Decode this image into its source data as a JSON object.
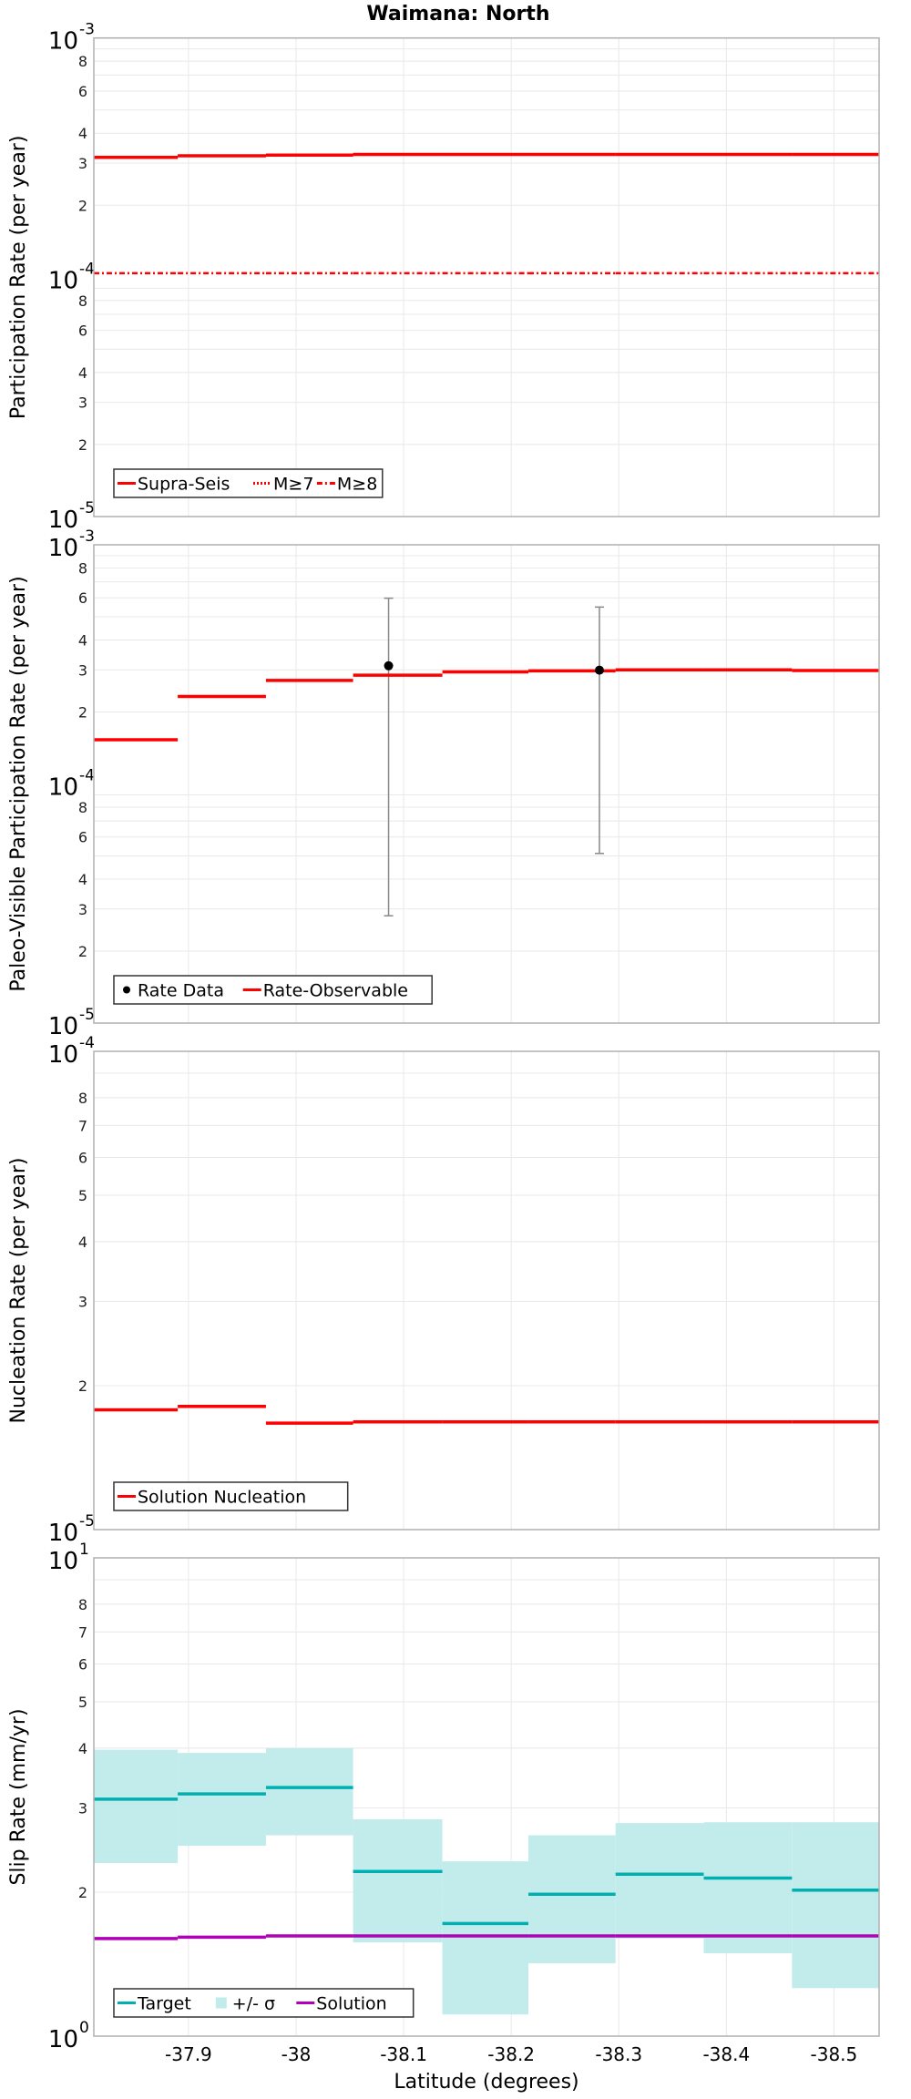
{
  "title": "Waimana: North",
  "x_axis": {
    "label": "Latitude (degrees)",
    "range": [
      -37.812,
      -38.542
    ],
    "ticks": [
      -37.9,
      -38.0,
      -38.1,
      -38.2,
      -38.3,
      -38.4,
      -38.5
    ],
    "tick_labels": [
      "-37.9",
      "-38",
      "-38.1",
      "-38.2",
      "-38.3",
      "-38.4",
      "-38.5"
    ]
  },
  "colors": {
    "red": "#ff0000",
    "target": "#00b0b0",
    "band": "#c2ecec",
    "solution": "#b000b8",
    "errorbar": "#888888",
    "grid": "#e8e8e8",
    "frame": "#b0b0b0"
  },
  "chart_data": [
    {
      "type": "line",
      "subtype": "step",
      "title": "Waimana: North",
      "ylabel": "Participation Rate (per year)",
      "xlabel": "",
      "yscale": "log",
      "ylim": [
        1e-05,
        0.001
      ],
      "y_decade_labels": [
        {
          "base": "10",
          "exp": "-3",
          "value": 0.001
        },
        {
          "base": "10",
          "exp": "-4",
          "value": 0.0001
        },
        {
          "base": "10",
          "exp": "-5",
          "value": 1e-05
        }
      ],
      "y_minor_labels": [
        "2",
        "3",
        "4",
        "6",
        "8"
      ],
      "segment_edges": [
        -37.812,
        -37.89,
        -37.972,
        -38.053,
        -38.136,
        -38.216,
        -38.297,
        -38.379,
        -38.461,
        -38.542
      ],
      "series": [
        {
          "name": "Supra-Seis",
          "style": "solid",
          "color": "#ff0000",
          "values": [
            0.000317,
            0.000322,
            0.000324,
            0.000326,
            0.000326,
            0.000326,
            0.000326,
            0.000326,
            0.000326
          ]
        },
        {
          "name": "M≥7",
          "style": "dotted",
          "color": "#ff0000",
          "values": [
            0.000317,
            0.000322,
            0.000324,
            0.000326,
            0.000326,
            0.000326,
            0.000326,
            0.000326,
            0.000326
          ]
        },
        {
          "name": "M≥8",
          "style": "dashdot",
          "color": "#ff0000",
          "values": [
            0.000104,
            0.000104,
            0.000104,
            0.000104,
            0.000104,
            0.000104,
            0.000104,
            0.000104,
            0.000104
          ]
        }
      ],
      "legend": {
        "position": "lower-left",
        "entries": [
          {
            "label": "Supra-Seis",
            "symbol": "solid",
            "color": "#ff0000"
          },
          {
            "label": "M≥7",
            "symbol": "dotted",
            "color": "#ff0000"
          },
          {
            "label": "M≥8",
            "symbol": "dashdot",
            "color": "#ff0000"
          }
        ]
      },
      "grid": true
    },
    {
      "type": "line",
      "subtype": "step+scatter",
      "ylabel": "Paleo-Visible Participation Rate (per year)",
      "xlabel": "",
      "yscale": "log",
      "ylim": [
        1e-05,
        0.001
      ],
      "y_decade_labels": [
        {
          "base": "10",
          "exp": "-3",
          "value": 0.001
        },
        {
          "base": "10",
          "exp": "-4",
          "value": 0.0001
        },
        {
          "base": "10",
          "exp": "-5",
          "value": 1e-05
        }
      ],
      "y_minor_labels": [
        "2",
        "3",
        "4",
        "6",
        "8"
      ],
      "segment_edges": [
        -37.812,
        -37.89,
        -37.972,
        -38.053,
        -38.136,
        -38.216,
        -38.297,
        -38.379,
        -38.461,
        -38.542
      ],
      "series": [
        {
          "name": "Rate-Observable",
          "style": "solid",
          "color": "#ff0000",
          "values": [
            0.000153,
            0.000232,
            0.000271,
            0.000285,
            0.000294,
            0.000297,
            0.0003,
            0.0003,
            0.000298
          ]
        }
      ],
      "points": [
        {
          "name": "Rate Data",
          "x": -38.086,
          "y": 0.000312,
          "y_low": 2.81e-05,
          "y_high": 0.000598
        },
        {
          "name": "Rate Data",
          "x": -38.282,
          "y": 0.000299,
          "y_low": 5.12e-05,
          "y_high": 0.000549
        }
      ],
      "legend": {
        "position": "lower-left",
        "entries": [
          {
            "label": "Rate Data",
            "symbol": "dot",
            "color": "#000000"
          },
          {
            "label": "Rate-Observable",
            "symbol": "solid",
            "color": "#ff0000"
          }
        ]
      },
      "grid": true
    },
    {
      "type": "line",
      "subtype": "step",
      "ylabel": "Nucleation Rate (per year)",
      "xlabel": "",
      "yscale": "log",
      "ylim": [
        1e-05,
        0.0001
      ],
      "y_decade_labels": [
        {
          "base": "10",
          "exp": "-4",
          "value": 0.0001
        },
        {
          "base": "10",
          "exp": "-5",
          "value": 1e-05
        }
      ],
      "y_minor_labels": [
        "2",
        "3",
        "4",
        "5",
        "6",
        "7",
        "8"
      ],
      "segment_edges": [
        -37.812,
        -37.89,
        -37.972,
        -38.053,
        -38.136,
        -38.216,
        -38.297,
        -38.379,
        -38.461,
        -38.542
      ],
      "series": [
        {
          "name": "Solution Nucleation",
          "style": "solid",
          "color": "#ff0000",
          "values": [
            1.78e-05,
            1.81e-05,
            1.67e-05,
            1.68e-05,
            1.68e-05,
            1.68e-05,
            1.68e-05,
            1.68e-05,
            1.68e-05
          ]
        }
      ],
      "legend": {
        "position": "lower-left",
        "entries": [
          {
            "label": "Solution Nucleation",
            "symbol": "solid",
            "color": "#ff0000"
          }
        ]
      },
      "grid": true
    },
    {
      "type": "line",
      "subtype": "step+band",
      "ylabel": "Slip Rate (mm/yr)",
      "xlabel": "Latitude (degrees)",
      "yscale": "log",
      "ylim": [
        1,
        10
      ],
      "y_decade_labels": [
        {
          "base": "10",
          "exp": "1",
          "value": 10
        },
        {
          "base": "10",
          "exp": "0",
          "value": 1
        }
      ],
      "y_minor_labels": [
        "2",
        "3",
        "4",
        "5",
        "6",
        "7",
        "8"
      ],
      "segment_edges": [
        -37.812,
        -37.89,
        -37.972,
        -38.053,
        -38.136,
        -38.216,
        -38.297,
        -38.379,
        -38.461,
        -38.542
      ],
      "series": [
        {
          "name": "Target",
          "style": "solid",
          "color": "#00b0b0",
          "values": [
            3.13,
            3.21,
            3.31,
            2.21,
            1.72,
            1.98,
            2.18,
            2.14,
            2.02
          ]
        },
        {
          "name": "+/- σ",
          "style": "band",
          "color": "#c2ecec",
          "upper": [
            3.97,
            3.91,
            4.0,
            2.84,
            2.32,
            2.63,
            2.79,
            2.8,
            2.8
          ],
          "lower": [
            2.3,
            2.5,
            2.63,
            1.57,
            1.11,
            1.42,
            1.6,
            1.49,
            1.26
          ]
        },
        {
          "name": "Solution",
          "style": "solid",
          "color": "#b000b8",
          "values": [
            1.6,
            1.61,
            1.62,
            1.62,
            1.62,
            1.62,
            1.62,
            1.62,
            1.62
          ]
        }
      ],
      "legend": {
        "position": "lower-left",
        "entries": [
          {
            "label": "Target",
            "symbol": "solid",
            "color": "#00b0b0"
          },
          {
            "label": "+/- σ",
            "symbol": "square",
            "color": "#c2ecec"
          },
          {
            "label": "Solution",
            "symbol": "solid",
            "color": "#b000b8"
          }
        ]
      },
      "grid": true
    }
  ]
}
